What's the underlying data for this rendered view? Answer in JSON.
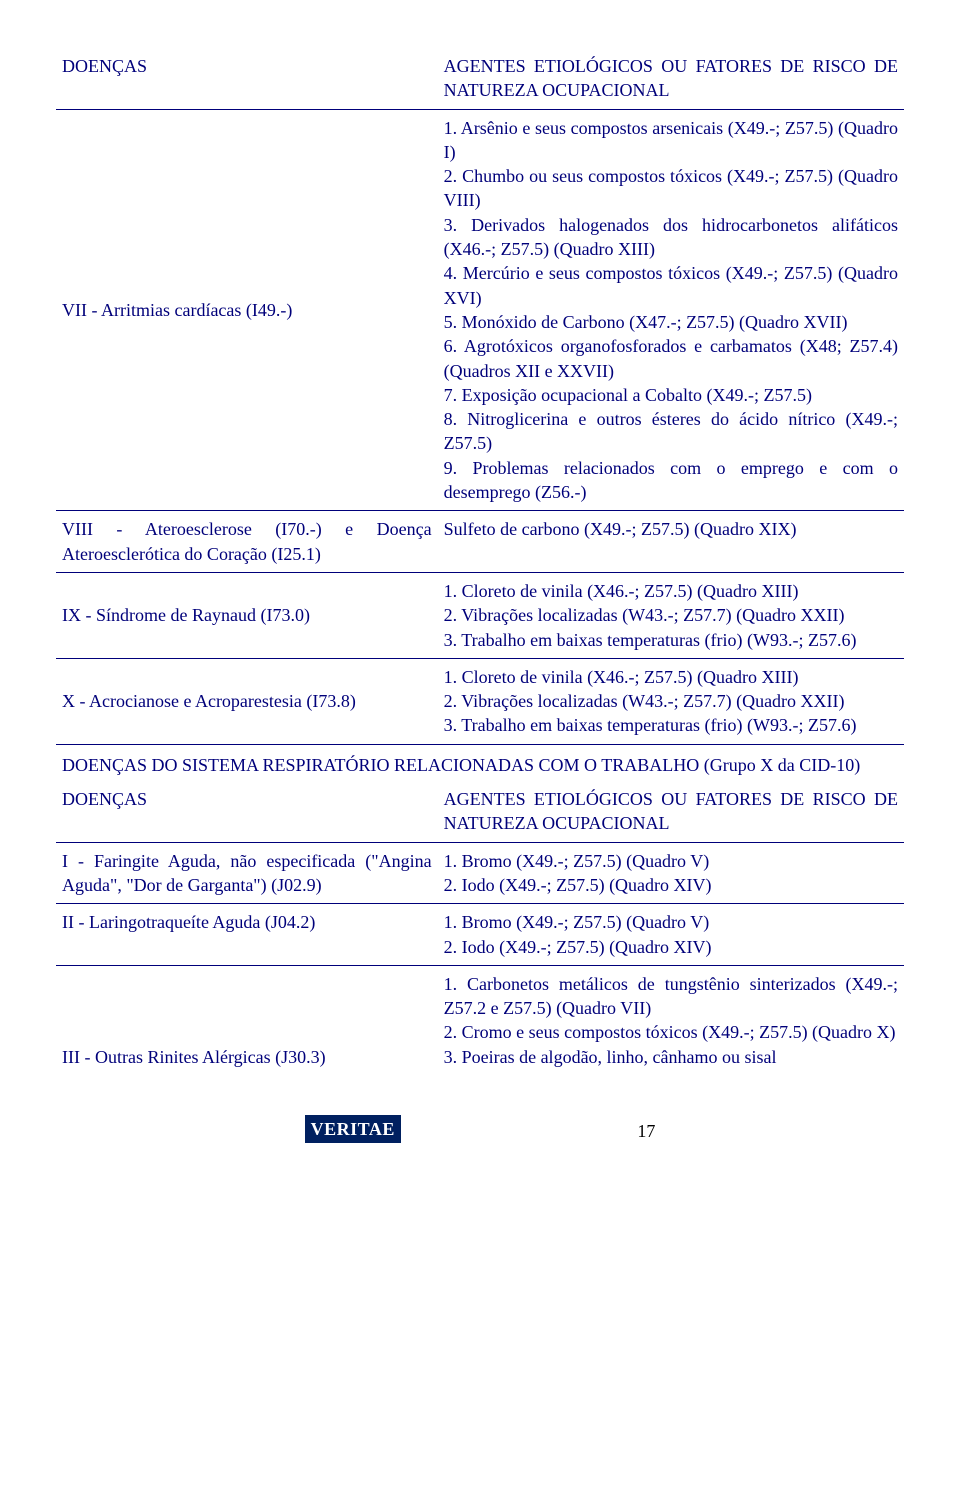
{
  "table1": {
    "header": {
      "left": "DOENÇAS",
      "right": "AGENTES ETIOLÓGICOS OU FATORES DE RISCO DE NATUREZA OCUPACIONAL"
    },
    "row7": {
      "left": "VII - Arritmias cardíacas (I49.-)",
      "right": "1. Arsênio e seus compostos arsenicais (X49.-; Z57.5) (Quadro I)\n2. Chumbo ou seus compostos tóxicos (X49.-; Z57.5) (Quadro VIII)\n3. Derivados halogenados dos hidrocarbonetos alifáticos (X46.-; Z57.5) (Quadro XIII)\n4. Mercúrio e seus compostos tóxicos (X49.-; Z57.5) (Quadro XVI)\n5. Monóxido de Carbono (X47.-; Z57.5) (Quadro XVII)\n6. Agrotóxicos organofosforados e carbamatos (X48; Z57.4) (Quadros XII e XXVII)\n7. Exposição ocupacional a Cobalto (X49.-; Z57.5)\n8. Nitroglicerina e outros ésteres do ácido nítrico (X49.-; Z57.5)\n9. Problemas relacionados com o emprego e com o desemprego (Z56.-)"
    },
    "row8": {
      "left": "VIII - Ateroesclerose (I70.-) e Doença Ateroesclerótica do Coração (I25.1)",
      "right": "Sulfeto de carbono (X49.-; Z57.5) (Quadro XIX)"
    },
    "row9": {
      "left": "IX - Síndrome de Raynaud (I73.0)",
      "right": "1. Cloreto de vinila (X46.-; Z57.5) (Quadro XIII)\n2. Vibrações localizadas (W43.-; Z57.7) (Quadro XXII)\n3. Trabalho em baixas temperaturas (frio) (W93.-; Z57.6)"
    },
    "row10": {
      "left": "X - Acrocianose e Acroparestesia (I73.8)",
      "right": "1. Cloreto de vinila (X46.-; Z57.5) (Quadro XIII)\n2. Vibrações localizadas (W43.-; Z57.7) (Quadro XXII)\n3. Trabalho em baixas temperaturas (frio) (W93.-; Z57.6)"
    }
  },
  "sectionTitle": "DOENÇAS DO SISTEMA RESPIRATÓRIO RELACIONADAS COM O TRABALHO (Grupo X da CID-10)",
  "table2": {
    "header": {
      "left": "DOENÇAS",
      "right": "AGENTES ETIOLÓGICOS OU FATORES DE RISCO DE NATUREZA OCUPACIONAL"
    },
    "row1": {
      "left": "I - Faringite Aguda, não especificada (\"Angina Aguda\", \"Dor de Garganta\") (J02.9)",
      "right": "1. Bromo (X49.-; Z57.5) (Quadro V)\n2. Iodo (X49.-; Z57.5) (Quadro XIV)"
    },
    "row2": {
      "left": "II - Laringotraqueíte Aguda (J04.2)",
      "right": "1. Bromo (X49.-; Z57.5) (Quadro V)\n2. Iodo (X49.-; Z57.5) (Quadro XIV)"
    },
    "row3": {
      "left": "III - Outras Rinites Alérgicas (J30.3)",
      "right": "1. Carbonetos metálicos de tungstênio sinterizados (X49.-; Z57.2 e Z57.5) (Quadro VII)\n2. Cromo e seus compostos tóxicos (X49.-; Z57.5) (Quadro X)\n3. Poeiras de algodão, linho, cânhamo ou sisal"
    }
  },
  "footer": {
    "brand": "VERITAE",
    "page": "17"
  }
}
